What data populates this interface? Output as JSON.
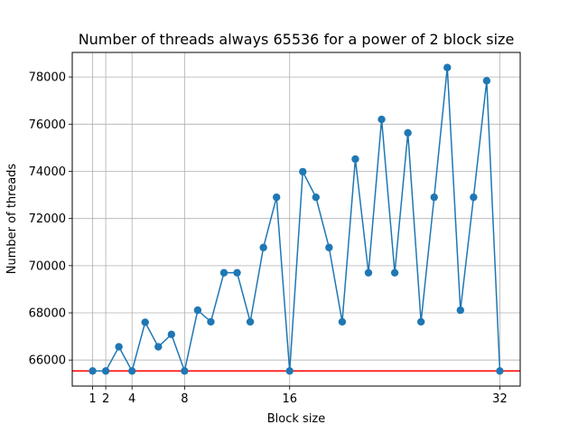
{
  "chart_data": {
    "type": "line",
    "title": "Number of threads always 65536 for a power of 2 block size",
    "xlabel": "Block size",
    "ylabel": "Number of threads",
    "xlim": [
      -0.55,
      33.55
    ],
    "ylim": [
      64896,
      79040
    ],
    "xticks": [
      1,
      2,
      4,
      8,
      16,
      32
    ],
    "yticks": [
      66000,
      68000,
      70000,
      72000,
      74000,
      76000,
      78000
    ],
    "grid": true,
    "series": [
      {
        "color": "#1f77b4",
        "marker": "circle",
        "x": [
          1,
          2,
          3,
          4,
          5,
          6,
          7,
          8,
          9,
          10,
          11,
          12,
          13,
          14,
          15,
          16,
          17,
          18,
          19,
          20,
          21,
          22,
          23,
          24,
          25,
          26,
          27,
          28,
          29,
          30,
          31,
          32
        ],
        "y": [
          65536,
          65536,
          66560,
          65536,
          67600,
          66560,
          67088,
          65536,
          68112,
          67620,
          69700,
          69700,
          67620,
          70770,
          72900,
          65536,
          73984,
          72900,
          70770,
          67620,
          74520,
          69700,
          76200,
          69700,
          75630,
          67620,
          72900,
          78400,
          68112,
          72900,
          77840,
          65536
        ]
      }
    ],
    "reference_line": {
      "y": 65536,
      "color": "#ff0000"
    }
  }
}
